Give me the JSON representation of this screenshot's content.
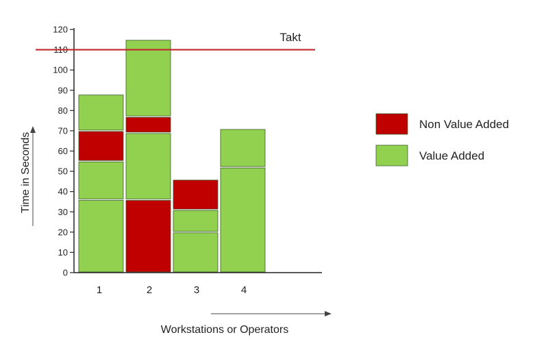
{
  "chart_data": {
    "type": "bar",
    "stacked": true,
    "categories": [
      "1",
      "2",
      "3",
      "4"
    ],
    "segment_colors": {
      "Non Value Added": "#c00000",
      "Value Added": "#92d050"
    },
    "stacks": [
      [
        {
          "type": "Value Added",
          "from": 0,
          "to": 36
        },
        {
          "type": "Value Added",
          "from": 36,
          "to": 55
        },
        {
          "type": "Non Value Added",
          "from": 55,
          "to": 70
        },
        {
          "type": "Value Added",
          "from": 70,
          "to": 88
        }
      ],
      [
        {
          "type": "Non Value Added",
          "from": 0,
          "to": 36
        },
        {
          "type": "Value Added",
          "from": 36,
          "to": 69
        },
        {
          "type": "Non Value Added",
          "from": 69,
          "to": 77
        },
        {
          "type": "Value Added",
          "from": 77,
          "to": 115
        }
      ],
      [
        {
          "type": "Value Added",
          "from": 0,
          "to": 20
        },
        {
          "type": "Value Added",
          "from": 20,
          "to": 31
        },
        {
          "type": "Non Value Added",
          "from": 31,
          "to": 46
        }
      ],
      [
        {
          "type": "Value Added",
          "from": 0,
          "to": 52
        },
        {
          "type": "Value Added",
          "from": 52,
          "to": 71
        }
      ]
    ],
    "reference_line": {
      "label": "Takt",
      "value": 110,
      "color": "#c0282d"
    },
    "xlabel": "Workstations or Operators",
    "ylabel": "Time in Seconds",
    "ylim": [
      0,
      120
    ],
    "yticks": [
      0,
      10,
      20,
      30,
      40,
      50,
      60,
      70,
      80,
      90,
      100,
      110,
      120
    ],
    "legend": {
      "position": "right",
      "items": [
        {
          "label": "Non Value  Added",
          "color": "#c00000"
        },
        {
          "label": "Value  Added",
          "color": "#92d050"
        }
      ]
    },
    "grid": false
  }
}
